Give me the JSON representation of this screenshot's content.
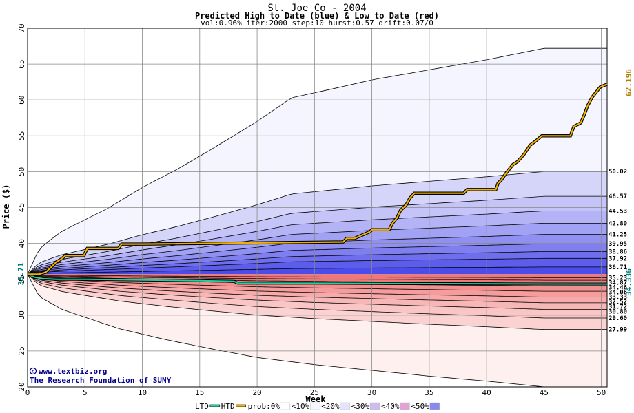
{
  "chart_data": {
    "type": "area",
    "title": "St. Joe Co - 2004",
    "subtitle": "Predicted High to Date (blue) &  Low to Date (red)",
    "params": "vol:0.96% iter:2000 step:10 hurst:0.57 drift:0.07/0",
    "xlabel": "Week",
    "ylabel": "Price ($)",
    "xlim": [
      0,
      50.5
    ],
    "ylim": [
      20,
      70
    ],
    "xticks": [
      0,
      5,
      10,
      15,
      20,
      25,
      30,
      35,
      40,
      45,
      50
    ],
    "yticks": [
      20,
      25,
      30,
      35,
      40,
      45,
      50,
      55,
      60,
      65,
      70
    ],
    "grid": true,
    "start_price": 35.71,
    "start_price_label": "35.71",
    "upper_envelope": {
      "x": [
        0,
        1,
        2,
        3,
        5,
        7,
        10,
        13,
        16,
        20,
        23,
        27,
        30,
        35,
        40,
        45,
        50.5
      ],
      "y": [
        35.71,
        39.2,
        40.5,
        41.7,
        43.3,
        44.9,
        47.8,
        50.3,
        53.1,
        57.0,
        60.3,
        61.7,
        62.8,
        64.2,
        65.6,
        67.2,
        67.2
      ]
    },
    "lower_envelope": {
      "x": [
        0,
        1,
        2,
        3,
        5,
        8,
        12,
        16,
        20,
        25,
        30,
        35,
        40,
        45,
        50.5
      ],
      "y": [
        35.71,
        32.6,
        31.7,
        30.8,
        29.7,
        28.1,
        26.6,
        25.3,
        24.1,
        23.1,
        22.3,
        21.5,
        20.8,
        20.0,
        20.0
      ]
    },
    "upper_bands": [
      {
        "end": 50.02,
        "label": "50.02"
      },
      {
        "end": 46.57,
        "label": "46.57"
      },
      {
        "end": 44.53,
        "label": "44.53"
      },
      {
        "end": 42.8,
        "label": "42.80"
      },
      {
        "end": 41.25,
        "label": "41.25"
      },
      {
        "end": 39.95,
        "label": "39.95"
      },
      {
        "end": 38.86,
        "label": "38.86"
      },
      {
        "end": 37.92,
        "label": "37.92"
      },
      {
        "end": 36.71,
        "label": "36.71"
      }
    ],
    "lower_bands": [
      {
        "end": 35.23,
        "label": "35.23"
      },
      {
        "end": 34.87,
        "label": "34.87"
      },
      {
        "end": 34.46,
        "label": "34.46"
      },
      {
        "end": 34.06,
        "label": "34.06"
      },
      {
        "end": 33.33,
        "label": "33.33"
      },
      {
        "end": 32.52,
        "label": "32.52"
      },
      {
        "end": 31.72,
        "label": "31.72"
      },
      {
        "end": 30.8,
        "label": "30.80"
      },
      {
        "end": 29.6,
        "label": "29.60"
      },
      {
        "end": 27.99,
        "label": "27.99"
      }
    ],
    "htd": {
      "name": "HTD",
      "color": "#f0b000",
      "final_label": "62.196",
      "x": [
        0,
        1,
        1.6,
        2,
        2.5,
        3,
        3.3,
        4.9,
        5.2,
        7.9,
        8.2,
        10,
        27.5,
        27.8,
        28.5,
        29.8,
        30,
        31.5,
        31.8,
        32.2,
        32.5,
        33,
        33.3,
        33.7,
        38,
        38.3,
        40.8,
        41,
        41.3,
        41.7,
        42.3,
        42.7,
        43.3,
        43.8,
        44.3,
        44.8,
        47.3,
        47.6,
        48.2,
        48.5,
        48.8,
        49.2,
        49.5,
        49.9,
        50.5
      ],
      "y": [
        35.71,
        35.71,
        36.0,
        36.6,
        37.4,
        37.9,
        38.3,
        38.3,
        39.3,
        39.3,
        39.9,
        39.9,
        40.2,
        40.7,
        40.7,
        41.6,
        41.9,
        41.9,
        42.8,
        43.6,
        44.6,
        45.4,
        46.3,
        47.0,
        47.0,
        47.5,
        47.5,
        48.4,
        48.9,
        49.8,
        51.0,
        51.4,
        52.5,
        53.7,
        54.3,
        55.0,
        55.0,
        56.3,
        56.8,
        57.9,
        59.2,
        60.4,
        61.0,
        61.8,
        62.196
      ]
    },
    "ltd": {
      "name": "LTD",
      "color": "#20d0a0",
      "final_label": "34.336",
      "x": [
        0,
        0.6,
        1.3,
        2.5,
        5,
        10,
        15,
        18,
        18.3,
        25,
        35,
        45,
        50.5
      ],
      "y": [
        35.71,
        35.3,
        35.1,
        35.0,
        35.0,
        34.9,
        34.8,
        34.7,
        34.45,
        34.45,
        34.4,
        34.35,
        34.336
      ]
    },
    "legend": [
      "LTD",
      "HTD",
      "prob:0%",
      "<10%",
      "<20%",
      "<30%",
      "<40%",
      "<50%"
    ],
    "legend_colors": [
      "#ffffff",
      "#f6f6ff",
      "#e4e4fb",
      "#cdbcef",
      "#e2a2d4",
      "#8888f0"
    ],
    "credits": [
      "www.textbiz.org",
      "The Research Foundation of SUNY"
    ]
  }
}
